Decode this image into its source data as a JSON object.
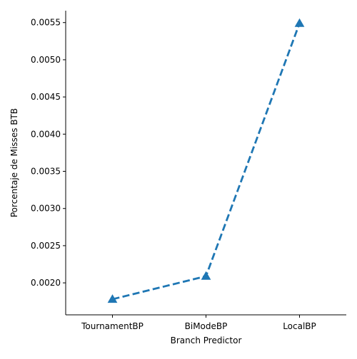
{
  "chart_data": {
    "type": "line",
    "categories": [
      "TournamentBP",
      "BiModeBP",
      "LocalBP"
    ],
    "series": [
      {
        "values": [
          0.00178,
          0.00209,
          0.00549
        ]
      }
    ],
    "xlabel": "Branch Predictor",
    "ylabel": "Porcentaje de Misses BTB",
    "ylim": [
      0.00157,
      0.00566
    ],
    "yticks": [
      "0.0020",
      "0.0025",
      "0.0030",
      "0.0035",
      "0.0040",
      "0.0045",
      "0.0050",
      "0.0055"
    ],
    "grid": false,
    "line_style": "dashed",
    "marker": "triangle-up",
    "color": "#1f77b4"
  }
}
